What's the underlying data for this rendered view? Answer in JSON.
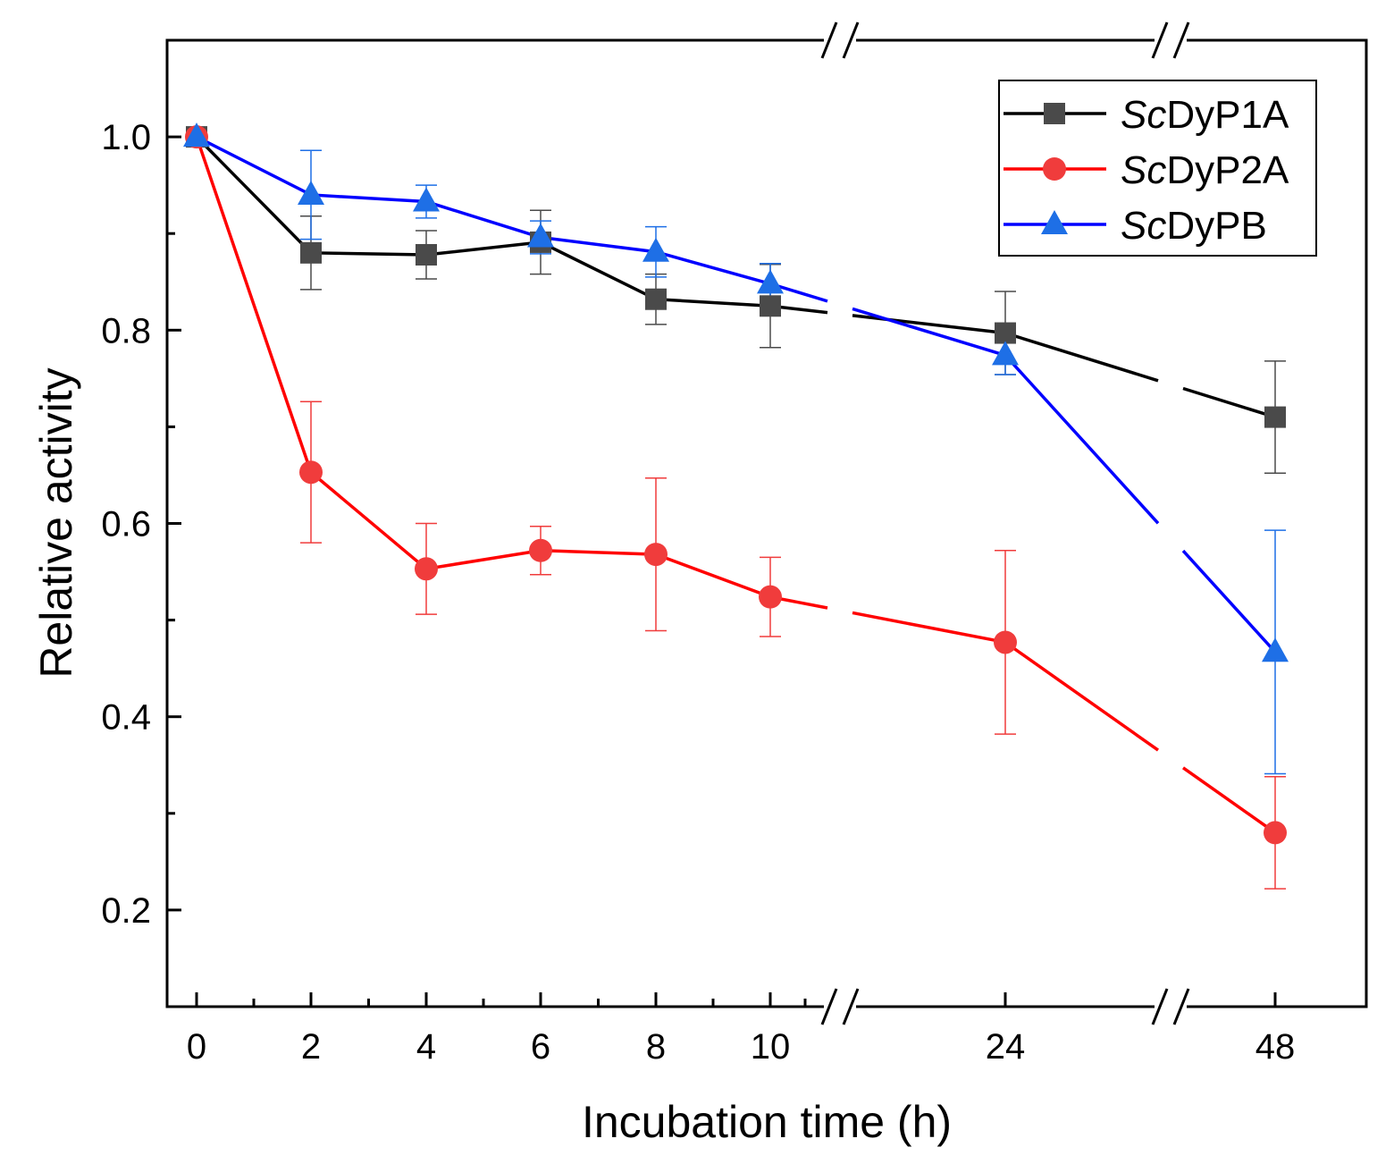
{
  "chart_data": {
    "type": "line",
    "xlabel": "Incubation time (h)",
    "ylabel": "Relative activity",
    "ylim": [
      0.1,
      1.1
    ],
    "yticks": [
      "0.2",
      "0.4",
      "0.6",
      "0.8",
      "1.0"
    ],
    "categories": [
      "0",
      "2",
      "4",
      "6",
      "8",
      "10",
      "24",
      "48"
    ],
    "axis_breaks": [
      "between 10 and 24",
      "between 24 and 48"
    ],
    "legend_position": "top-right",
    "series": [
      {
        "name_italic": "Sc",
        "name_rest": "DyP1A",
        "color": "#000000",
        "marker_color": "#4a4a4a",
        "marker": "square",
        "values": [
          1.0,
          0.88,
          0.878,
          0.891,
          0.832,
          0.825,
          0.797,
          0.71
        ],
        "errors": [
          0.0,
          0.038,
          0.025,
          0.033,
          0.026,
          0.043,
          0.043,
          0.058
        ]
      },
      {
        "name_italic": "Sc",
        "name_rest": "DyP2A",
        "color": "#ff0000",
        "marker_color": "#f03c3c",
        "marker": "circle",
        "values": [
          1.0,
          0.653,
          0.553,
          0.572,
          0.568,
          0.524,
          0.477,
          0.28
        ],
        "errors": [
          0.0,
          0.073,
          0.047,
          0.025,
          0.079,
          0.041,
          0.095,
          0.058
        ]
      },
      {
        "name_italic": "Sc",
        "name_rest": "DyPB",
        "color": "#0000ff",
        "marker_color": "#1e6fe6",
        "marker": "triangle",
        "values": [
          1.0,
          0.94,
          0.933,
          0.896,
          0.881,
          0.848,
          0.774,
          0.467
        ],
        "errors": [
          0.0,
          0.046,
          0.017,
          0.017,
          0.026,
          0.021,
          0.02,
          0.126
        ]
      }
    ]
  }
}
